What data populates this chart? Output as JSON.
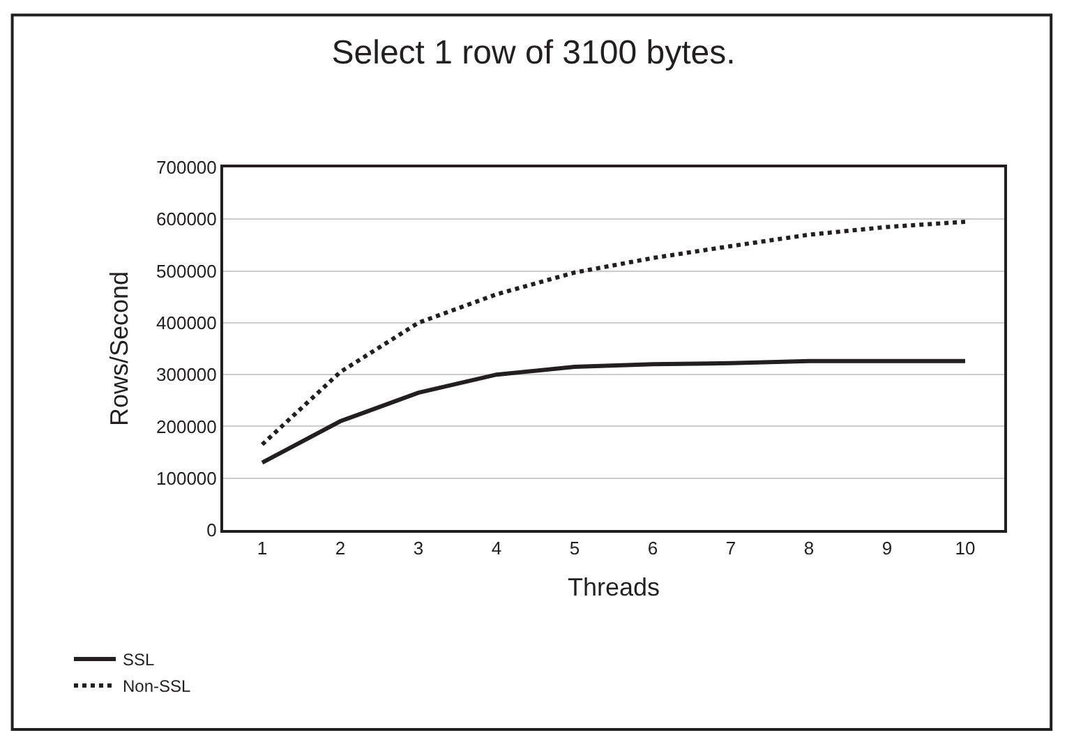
{
  "chart_data": {
    "type": "line",
    "title": "Select 1 row of 3100 bytes.",
    "xlabel": "Threads",
    "ylabel": "Rows/Second",
    "categories": [
      "1",
      "2",
      "3",
      "4",
      "5",
      "6",
      "7",
      "8",
      "9",
      "10"
    ],
    "series": [
      {
        "name": "SSL",
        "color": "#231f20",
        "line_style": "solid",
        "values": [
          130000,
          210000,
          265000,
          300000,
          315000,
          320000,
          322000,
          326000,
          326000,
          326000
        ]
      },
      {
        "name": "Non-SSL",
        "color": "#231f20",
        "line_style": "dotted",
        "values": [
          165000,
          305000,
          400000,
          455000,
          497000,
          525000,
          548000,
          570000,
          585000,
          595000
        ]
      }
    ],
    "ylim": [
      0,
      700000
    ],
    "yticks": [
      0,
      100000,
      200000,
      300000,
      400000,
      500000,
      600000,
      700000
    ],
    "grid": "y",
    "legend": "bottom left",
    "marker": "none"
  }
}
